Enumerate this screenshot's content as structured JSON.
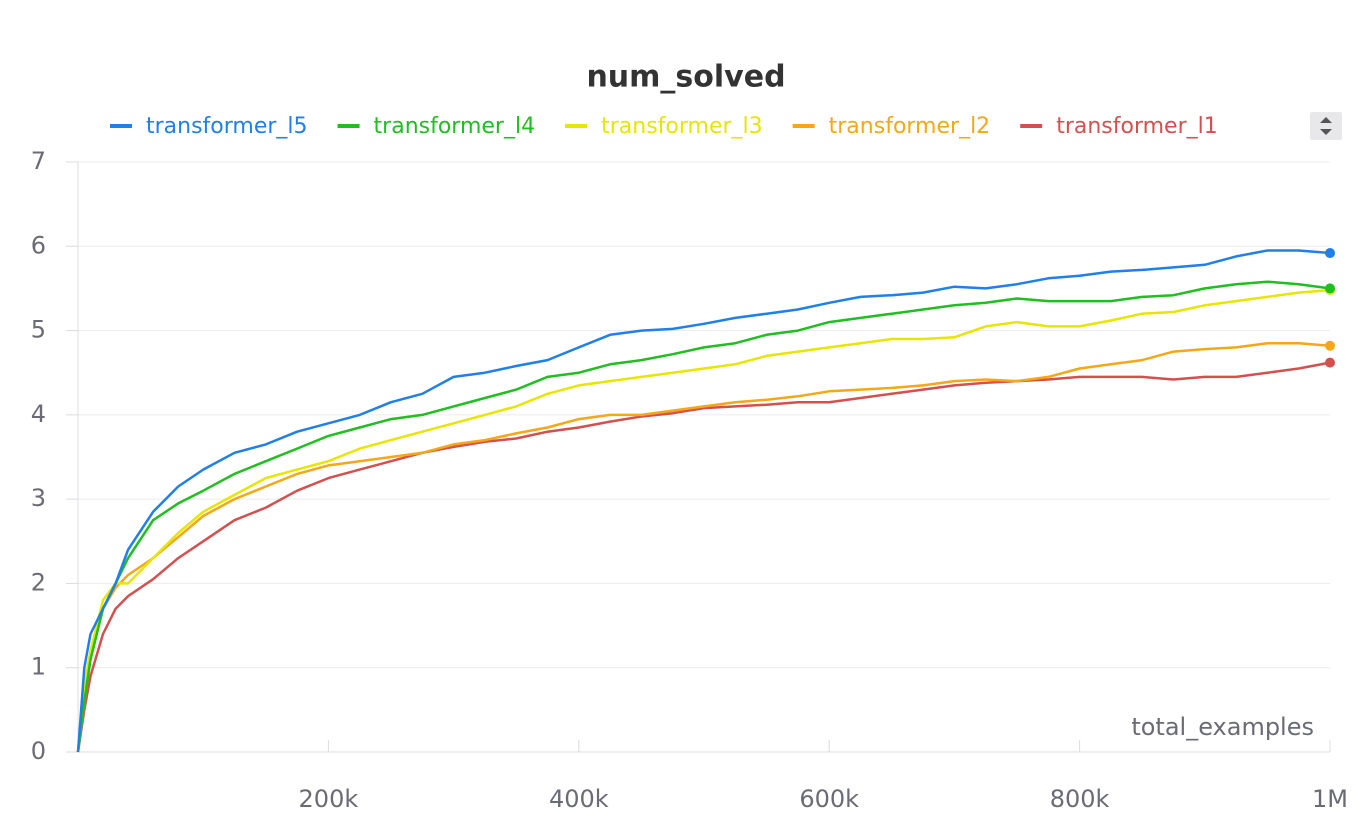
{
  "chart_data": {
    "type": "line",
    "title": "num_solved",
    "x_label": "total_examples",
    "x": [
      0,
      5000,
      10000,
      20000,
      30000,
      40000,
      60000,
      80000,
      100000,
      125000,
      150000,
      175000,
      200000,
      225000,
      250000,
      275000,
      300000,
      325000,
      350000,
      375000,
      400000,
      425000,
      450000,
      475000,
      500000,
      525000,
      550000,
      575000,
      600000,
      625000,
      650000,
      675000,
      700000,
      725000,
      750000,
      775000,
      800000,
      825000,
      850000,
      875000,
      900000,
      925000,
      950000,
      975000,
      1000000
    ],
    "series": [
      {
        "name": "transformer_l5",
        "color": "#1e80e8",
        "values": [
          0,
          1.0,
          1.4,
          1.7,
          2.0,
          2.4,
          2.85,
          3.15,
          3.35,
          3.55,
          3.65,
          3.8,
          3.9,
          4.0,
          4.15,
          4.25,
          4.45,
          4.5,
          4.58,
          4.65,
          4.8,
          4.95,
          5.0,
          5.02,
          5.08,
          5.15,
          5.2,
          5.25,
          5.33,
          5.4,
          5.42,
          5.45,
          5.52,
          5.5,
          5.55,
          5.62,
          5.65,
          5.7,
          5.72,
          5.75,
          5.78,
          5.88,
          5.95,
          5.95,
          5.92
        ]
      },
      {
        "name": "transformer_l4",
        "color": "#1fbf1f",
        "values": [
          0,
          0.6,
          1.1,
          1.7,
          2.0,
          2.3,
          2.75,
          2.95,
          3.1,
          3.3,
          3.45,
          3.6,
          3.75,
          3.85,
          3.95,
          4.0,
          4.1,
          4.2,
          4.3,
          4.45,
          4.5,
          4.6,
          4.65,
          4.72,
          4.8,
          4.85,
          4.95,
          5.0,
          5.1,
          5.15,
          5.2,
          5.25,
          5.3,
          5.33,
          5.38,
          5.35,
          5.35,
          5.35,
          5.4,
          5.42,
          5.5,
          5.55,
          5.58,
          5.55,
          5.5
        ]
      },
      {
        "name": "transformer_l3",
        "color": "#e6e600",
        "values": [
          0,
          0.8,
          1.2,
          1.8,
          2.0,
          2.0,
          2.3,
          2.6,
          2.85,
          3.05,
          3.25,
          3.35,
          3.45,
          3.6,
          3.7,
          3.8,
          3.9,
          4.0,
          4.1,
          4.25,
          4.35,
          4.4,
          4.45,
          4.5,
          4.55,
          4.6,
          4.7,
          4.75,
          4.8,
          4.85,
          4.9,
          4.9,
          4.92,
          5.05,
          5.1,
          5.05,
          5.05,
          5.12,
          5.2,
          5.22,
          5.3,
          5.35,
          5.4,
          5.45,
          5.48
        ]
      },
      {
        "name": "transformer_l2",
        "color": "#f5a716",
        "values": [
          0,
          0.6,
          1.1,
          1.7,
          1.95,
          2.1,
          2.3,
          2.55,
          2.8,
          3.0,
          3.15,
          3.3,
          3.4,
          3.45,
          3.5,
          3.55,
          3.65,
          3.7,
          3.78,
          3.85,
          3.95,
          4.0,
          4.0,
          4.05,
          4.1,
          4.15,
          4.18,
          4.22,
          4.28,
          4.3,
          4.32,
          4.35,
          4.4,
          4.42,
          4.4,
          4.45,
          4.55,
          4.6,
          4.65,
          4.75,
          4.78,
          4.8,
          4.85,
          4.85,
          4.82
        ]
      },
      {
        "name": "transformer_l1",
        "color": "#d64f4f",
        "values": [
          0,
          0.5,
          0.9,
          1.4,
          1.7,
          1.85,
          2.05,
          2.3,
          2.5,
          2.75,
          2.9,
          3.1,
          3.25,
          3.35,
          3.45,
          3.55,
          3.62,
          3.68,
          3.72,
          3.8,
          3.85,
          3.92,
          3.98,
          4.02,
          4.08,
          4.1,
          4.12,
          4.15,
          4.15,
          4.2,
          4.25,
          4.3,
          4.35,
          4.38,
          4.4,
          4.42,
          4.45,
          4.45,
          4.45,
          4.42,
          4.45,
          4.45,
          4.5,
          4.55,
          4.62
        ]
      }
    ],
    "xlim": [
      0,
      1000000
    ],
    "xticks": [
      {
        "value": 200000,
        "label": "200k"
      },
      {
        "value": 400000,
        "label": "400k"
      },
      {
        "value": 600000,
        "label": "600k"
      },
      {
        "value": 800000,
        "label": "800k"
      },
      {
        "value": 1000000,
        "label": "1M"
      }
    ],
    "ylim": [
      0,
      7
    ],
    "yticks": [
      0,
      1,
      2,
      3,
      4,
      5,
      6,
      7
    ],
    "grid": true
  }
}
